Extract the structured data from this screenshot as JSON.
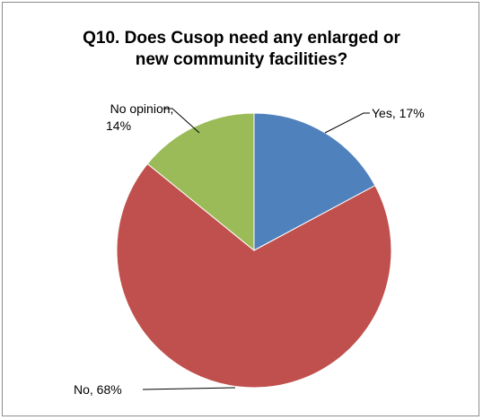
{
  "chart_data": {
    "type": "pie",
    "title_lines": [
      "Q10. Does Cusop need any enlarged or",
      "new community facilities?"
    ],
    "slices": [
      {
        "label": "Yes",
        "value": 17,
        "display": "Yes, 17%",
        "color": "#4f81bd"
      },
      {
        "label": "No",
        "value": 68,
        "display": "No, 68%",
        "color": "#c0504d"
      },
      {
        "label": "No opinion",
        "value": 14,
        "display_lines": [
          "No opinion,",
          "14%"
        ],
        "color": "#9bbb59"
      }
    ],
    "start_angle": "12 o'clock",
    "direction": "clockwise",
    "legend": "none"
  }
}
